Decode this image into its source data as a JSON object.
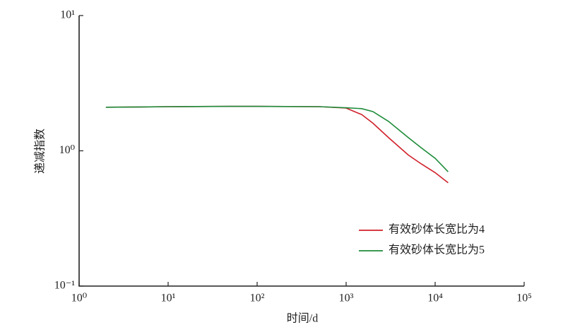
{
  "chart_data": {
    "type": "line",
    "x_label": "时间/d",
    "y_label": "递减指数",
    "xlog": true,
    "ylog": true,
    "xlim": [
      1,
      100000
    ],
    "ylim": [
      0.1,
      10
    ],
    "xticks": [
      {
        "value": 1,
        "label": "10⁰"
      },
      {
        "value": 10,
        "label": "10¹"
      },
      {
        "value": 100,
        "label": "10²"
      },
      {
        "value": 1000,
        "label": "10³"
      },
      {
        "value": 10000,
        "label": "10⁴"
      },
      {
        "value": 100000,
        "label": "10⁵"
      }
    ],
    "yticks": [
      {
        "value": 0.1,
        "label": "10⁻¹"
      },
      {
        "value": 1,
        "label": "10⁰"
      },
      {
        "value": 10,
        "label": "10¹"
      }
    ],
    "legend": "lower right",
    "x": [
      2,
      5,
      10,
      50,
      100,
      500,
      1000,
      1500,
      2000,
      3000,
      5000,
      7000,
      10000,
      14000
    ],
    "series": [
      {
        "name": "有效砂体长宽比为4",
        "color": "#d0202a",
        "values": [
          2.1,
          2.11,
          2.12,
          2.13,
          2.13,
          2.12,
          2.07,
          1.85,
          1.6,
          1.25,
          0.93,
          0.8,
          0.69,
          0.58
        ]
      },
      {
        "name": "有效砂体长宽比为5",
        "color": "#1e8c3a",
        "values": [
          2.1,
          2.11,
          2.12,
          2.13,
          2.13,
          2.12,
          2.08,
          2.05,
          1.95,
          1.65,
          1.25,
          1.05,
          0.88,
          0.7
        ]
      }
    ]
  }
}
